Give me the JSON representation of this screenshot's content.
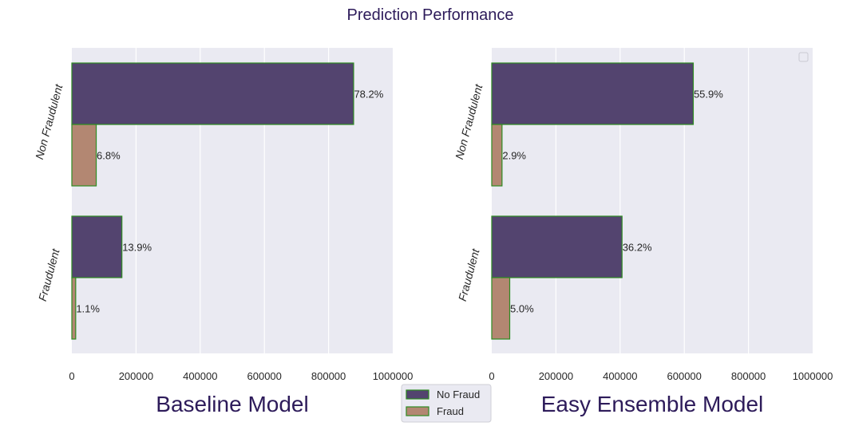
{
  "figure": {
    "suptitle": "Prediction Performance",
    "title_color": "#2d1b5a",
    "legend": {
      "entries": [
        {
          "label": "No Fraud",
          "color": "#53446f"
        },
        {
          "label": "Fraud",
          "color": "#b38772"
        }
      ],
      "edge_color": "#2e8b22"
    }
  },
  "chart_data": [
    {
      "type": "bar",
      "orientation": "horizontal",
      "xlabel": "Baseline Model",
      "xlim": [
        0,
        1000000
      ],
      "xticks": [
        "0",
        "200000",
        "400000",
        "600000",
        "800000",
        "1000000"
      ],
      "categories": [
        "Non Fraudulent",
        "Fraudulent"
      ],
      "series": [
        {
          "name": "No Fraud",
          "values": [
            878000,
            156000
          ],
          "labels": [
            "78.2%",
            "13.9%"
          ]
        },
        {
          "name": "Fraud",
          "values": [
            76000,
            12000
          ],
          "labels": [
            "6.8%",
            "1.1%"
          ]
        }
      ],
      "grid": true,
      "background": "#eaeaf2"
    },
    {
      "type": "bar",
      "orientation": "horizontal",
      "xlabel": "Easy Ensemble Model",
      "xlim": [
        0,
        1000000
      ],
      "xticks": [
        "0",
        "200000",
        "400000",
        "600000",
        "800000",
        "1000000"
      ],
      "categories": [
        "Non Fraudulent",
        "Fraudulent"
      ],
      "series": [
        {
          "name": "No Fraud",
          "values": [
            628000,
            406000
          ],
          "labels": [
            "55.9%",
            "36.2%"
          ]
        },
        {
          "name": "Fraud",
          "values": [
            32000,
            56000
          ],
          "labels": [
            "2.9%",
            "5.0%"
          ]
        }
      ],
      "grid": true,
      "background": "#eaeaf2",
      "legend": "empty box top-right"
    }
  ]
}
